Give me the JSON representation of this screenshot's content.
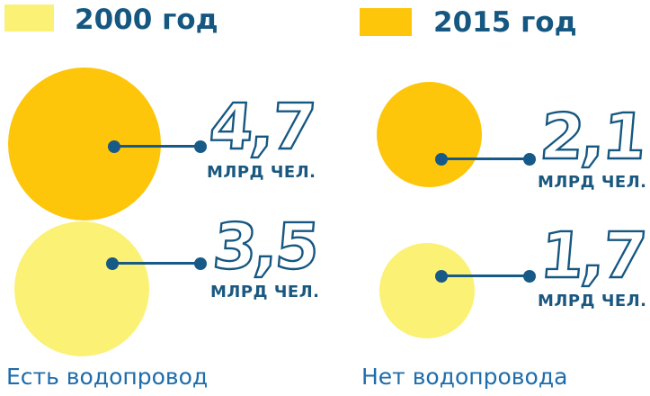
{
  "colors": {
    "gold_2015": "#FDC60B",
    "pale_yellow_2000": "#FBF175",
    "navy_text": "#155781",
    "callout_blue": "#175A88",
    "category_label_blue": "#1E6CAB",
    "background": "#FFFFFF"
  },
  "chart_data": {
    "type": "bubble",
    "title": "",
    "unit": "млрд чел.",
    "legend_position": "top",
    "legend": [
      {
        "label": "2000 год",
        "color": "#FBF175"
      },
      {
        "label": "2015 год",
        "color": "#FDC60B"
      }
    ],
    "groups": [
      {
        "label": "Есть водопровод",
        "bubbles": [
          {
            "year": 2015,
            "value": 4.7,
            "display_value": "4,7",
            "unit_label": "МЛРД ЧЕЛ.",
            "color": "#FDC60B"
          },
          {
            "year": 2000,
            "value": 3.5,
            "display_value": "3,5",
            "unit_label": "МЛРД ЧЕЛ.",
            "color": "#FBF175"
          }
        ]
      },
      {
        "label": "Нет водопровода",
        "bubbles": [
          {
            "year": 2015,
            "value": 2.1,
            "display_value": "2,1",
            "unit_label": "МЛРД ЧЕЛ.",
            "color": "#FDC60B"
          },
          {
            "year": 2000,
            "value": 1.7,
            "display_value": "1,7",
            "unit_label": "МЛРД ЧЕЛ.",
            "color": "#FBF175"
          }
        ]
      }
    ]
  }
}
